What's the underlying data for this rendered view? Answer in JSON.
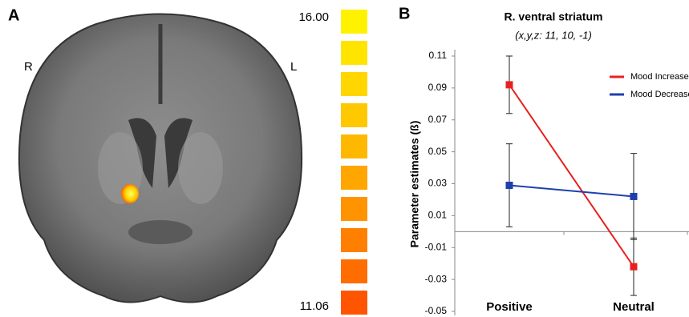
{
  "panel_a": {
    "label": "A",
    "left_side": "R",
    "right_side": "L",
    "colorbar_max": "16.00",
    "colorbar_min": "11.06"
  },
  "chart_data": {
    "type": "line",
    "panel_label": "B",
    "title": "R. ventral striatum",
    "subtitle": "(x,y,z: 11, 10, -1)",
    "y_label": "Parameter estimates (ß)",
    "categories": [
      "Positive",
      "Neutral"
    ],
    "series": [
      {
        "name": "Mood Increase",
        "color": "#e8201f",
        "values": [
          0.092,
          -0.022
        ],
        "errors": [
          0.018,
          0.018
        ]
      },
      {
        "name": "Mood Decrease",
        "color": "#1f3fae",
        "values": [
          0.029,
          0.022
        ],
        "errors": [
          0.026,
          0.027
        ]
      }
    ],
    "ylim": [
      -0.05,
      0.11
    ],
    "yticks": [
      0.11,
      0.09,
      0.07,
      0.05,
      0.03,
      0.01,
      -0.01,
      -0.03,
      -0.05
    ],
    "legend": "upper right"
  }
}
